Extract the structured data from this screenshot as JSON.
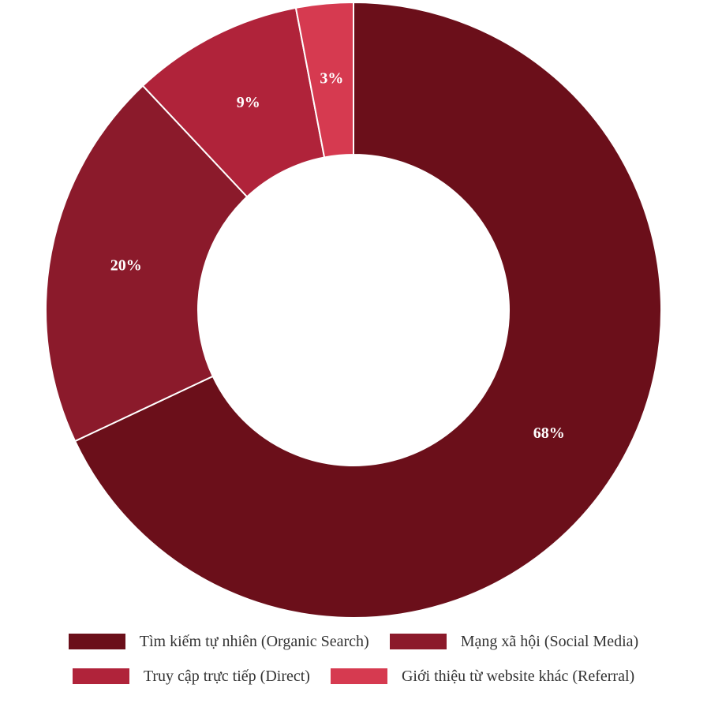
{
  "chart_data": {
    "type": "donut",
    "categories": [
      "Tìm kiếm tự nhiên (Organic Search)",
      "Mạng xã hội (Social Media)",
      "Truy cập trực tiếp (Direct)",
      "Giới thiệu từ website khác (Referral)"
    ],
    "values": [
      68,
      20,
      9,
      3
    ],
    "value_labels": [
      "68%",
      "20%",
      "9%",
      "3%"
    ],
    "colors": [
      "#6b0f1a",
      "#8b1a2b",
      "#b0233a",
      "#d63a50"
    ],
    "legend": "bottom"
  }
}
